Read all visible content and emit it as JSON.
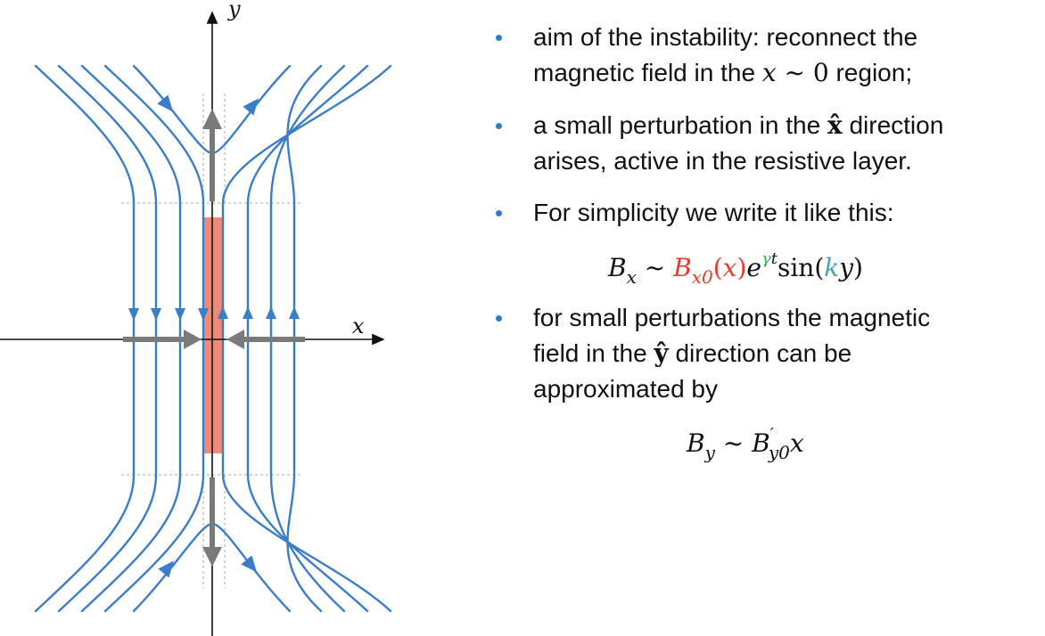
{
  "diagram": {
    "x_axis_label": "x",
    "y_axis_label": "y"
  },
  "colors": {
    "field_line": "#3a7dc8",
    "resistive_layer": "#ee8a78",
    "grey_arrow": "#7a7a7a",
    "bullet": "#2f7ac9",
    "red": "#e53b2c",
    "green": "#3aa84b",
    "teal": "#4aa3b8"
  },
  "bullets": [
    {
      "line1": "aim of the instability: reconnect the",
      "line2_pre": "magnetic field in the ",
      "math_x": "x",
      "math_sim": " ~ ",
      "math_zero": "0",
      "line2_post": " region;"
    },
    {
      "line1_pre": "a small perturbation in the ",
      "hat_var": "x̂",
      "line1_post": " direction",
      "line2": "arises, active in the resistive layer."
    },
    {
      "line1": "For simplicity we write it like this:"
    },
    {
      "line1": "for small perturbations the magnetic",
      "line2_pre": "field in the ",
      "hat_var": "ŷ",
      "line2_post": " direction can be",
      "line3": "approximated by"
    }
  ],
  "equation1": {
    "B": "B",
    "x_sub": "x",
    "sim": " ~ ",
    "B0": "B",
    "x0_sub": "x0",
    "lparen": "(",
    "arg": "x",
    "rparen": ")",
    "e": "e",
    "gamma": "γ",
    "t": "t",
    "sin": "sin(",
    "k": "k",
    "y": "y",
    "close": ")"
  },
  "equation2": {
    "B": "B",
    "y_sub": "y",
    "sim": " ~ ",
    "B2": "B",
    "prime": "′",
    "y0_sub": "y0",
    "x": "x"
  }
}
